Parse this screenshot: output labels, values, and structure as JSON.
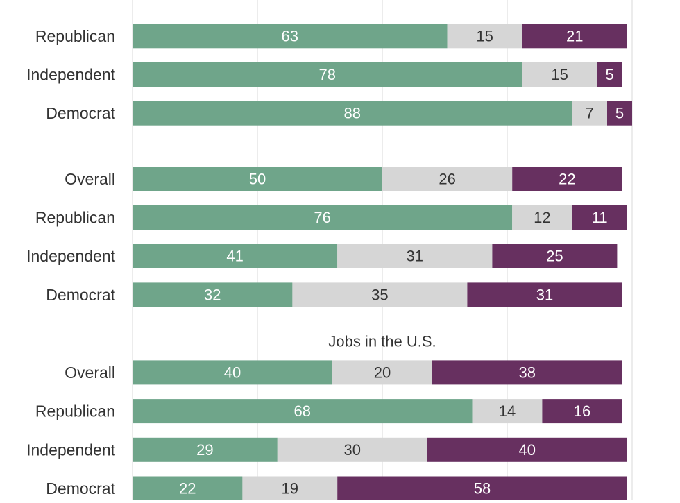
{
  "chart_data": {
    "type": "bar",
    "orientation": "horizontal",
    "stacked": true,
    "grid": true,
    "xlim": [
      0,
      100
    ],
    "segment_colors": [
      "#6fa58a",
      "#d6d6d6",
      "#673060"
    ],
    "value_text_colors": [
      "#ffffff",
      "#333333",
      "#ffffff"
    ],
    "groups": [
      {
        "title": "",
        "rows": [
          {
            "label": "Republican",
            "values": [
              63,
              15,
              21
            ]
          },
          {
            "label": "Independent",
            "values": [
              78,
              15,
              5
            ]
          },
          {
            "label": "Democrat",
            "values": [
              88,
              7,
              5
            ]
          }
        ]
      },
      {
        "title": "",
        "rows": [
          {
            "label": "Overall",
            "values": [
              50,
              26,
              22
            ]
          },
          {
            "label": "Republican",
            "values": [
              76,
              12,
              11
            ]
          },
          {
            "label": "Independent",
            "values": [
              41,
              31,
              25
            ]
          },
          {
            "label": "Democrat",
            "values": [
              32,
              35,
              31
            ]
          }
        ]
      },
      {
        "title": "Jobs in the U.S.",
        "rows": [
          {
            "label": "Overall",
            "values": [
              40,
              20,
              38
            ]
          },
          {
            "label": "Republican",
            "values": [
              68,
              14,
              16
            ]
          },
          {
            "label": "Independent",
            "values": [
              29,
              30,
              40
            ]
          },
          {
            "label": "Democrat",
            "values": [
              22,
              19,
              58
            ]
          }
        ]
      }
    ]
  }
}
